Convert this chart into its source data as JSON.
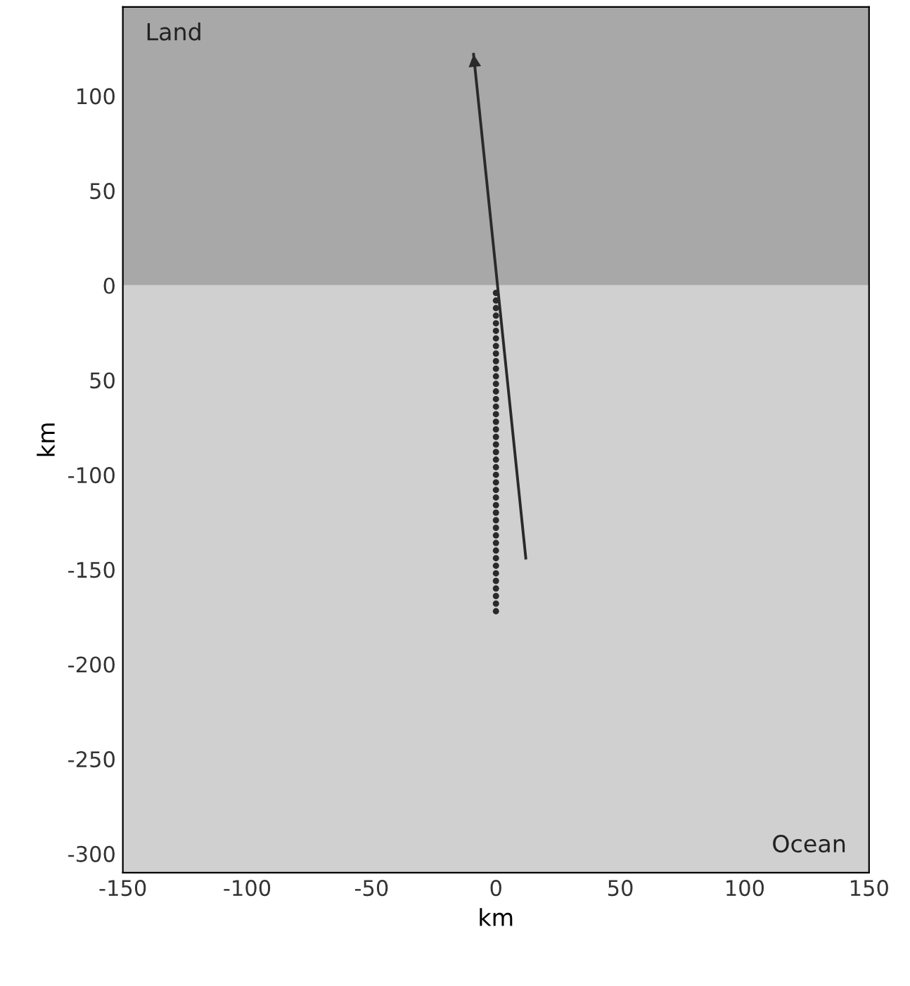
{
  "chart_data": {
    "type": "scatter",
    "xlabel": "km",
    "ylabel": "km",
    "xlim": [
      -150,
      150
    ],
    "ylim": [
      -310,
      147
    ],
    "xticks": [
      -150,
      -100,
      -50,
      0,
      50,
      100,
      150
    ],
    "yticks": [
      -300,
      -250,
      -200,
      -150,
      -100,
      {
        "value": -50,
        "label": "50"
      },
      0,
      50,
      100
    ],
    "bands": [
      {
        "axis": "y",
        "from": 0,
        "to": 147,
        "label": "Land",
        "color": "#a8a8a8"
      },
      {
        "axis": "y",
        "from": -310,
        "to": 0,
        "label": "Ocean",
        "color": "#d0d0d0"
      }
    ],
    "series": [
      {
        "type": "line",
        "color": "#2a2a2a",
        "x": [
          12,
          -9
        ],
        "values": [
          -144,
          122
        ],
        "marker": "none",
        "line_style": "solid"
      },
      {
        "color": "#2a2a2a",
        "marker": "circle",
        "x": [
          0,
          0,
          0,
          0,
          0,
          0,
          0,
          0,
          0,
          0,
          0,
          0,
          0,
          0,
          0,
          0,
          0,
          0,
          0,
          0,
          0,
          0,
          0,
          0,
          0,
          0,
          0,
          0,
          0,
          0,
          0,
          0,
          0,
          0,
          0,
          0,
          0,
          0,
          0,
          0,
          0,
          0,
          0
        ],
        "values": [
          -4,
          -8,
          -12,
          -16,
          -20,
          -24,
          -28,
          -32,
          -36,
          -40,
          -44,
          -48,
          -52,
          -56,
          -60,
          -64,
          -68,
          -72,
          -76,
          -80,
          -84,
          -88,
          -92,
          -96,
          -100,
          -104,
          -108,
          -112,
          -116,
          -120,
          -124,
          -128,
          -132,
          -136,
          -140,
          -144,
          -148,
          -152,
          -156,
          -160,
          -164,
          -168,
          -172
        ]
      }
    ],
    "grid": false,
    "legend": false
  }
}
